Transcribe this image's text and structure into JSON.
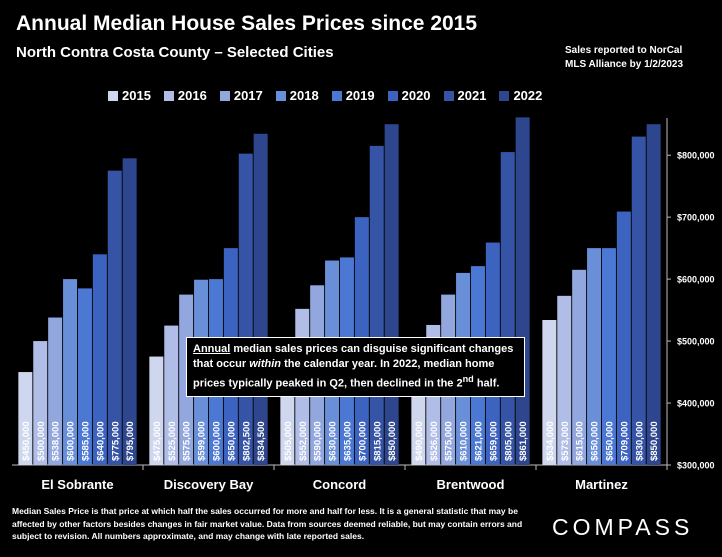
{
  "header": {
    "title": "Annual Median House Sales Prices since 2015",
    "subtitle": "North Contra Costa County – Selected Cities",
    "source_line1": "Sales reported to NorCal",
    "source_line2": "MLS Alliance by 1/2/2023"
  },
  "colors": [
    "#cfd7ee",
    "#b0bde6",
    "#93a7df",
    "#6a8fd9",
    "#4a78d3",
    "#3d63c1",
    "#3654a6",
    "#2e468d"
  ],
  "callout": {
    "word_annual": "Annual",
    "text1": " median sales prices can disguise significant changes that occur ",
    "word_within": "within",
    "text2": " the calendar year. In 2022, median home prices typically peaked in Q2, then declined in the 2",
    "superscript": "nd",
    "text3": " half."
  },
  "footnote": "Median Sales Price is that price at which half the sales occurred for more and half for less. It is a general statistic that may be affected by other factors besides changes in fair market value. Data from sources deemed reliable, but may contain errors and subject to revision.  All numbers approximate, and may change with late reported sales.",
  "logo": "COMPASS",
  "chart_data": {
    "type": "bar",
    "title": "Annual Median House Sales Prices since 2015",
    "categories": [
      "El Sobrante",
      "Discovery Bay",
      "Concord",
      "Brentwood",
      "Martinez"
    ],
    "ylim": [
      300000,
      860000
    ],
    "yticks": [
      300000,
      400000,
      500000,
      600000,
      700000,
      800000
    ],
    "ytick_labels": [
      "$300,000",
      "$400,000",
      "$500,000",
      "$600,000",
      "$700,000",
      "$800,000"
    ],
    "legend_position": "top",
    "series": [
      {
        "name": "2015",
        "values": [
          450000,
          475000,
          505000,
          490000,
          534000
        ],
        "labels": [
          "$450,000",
          "$475,000",
          "$505,000",
          "$490,000",
          "$534,000"
        ]
      },
      {
        "name": "2016",
        "values": [
          500000,
          525000,
          552000,
          526000,
          573000
        ],
        "labels": [
          "$500,000",
          "$525,000",
          "$552,000",
          "$526,000",
          "$573,000"
        ]
      },
      {
        "name": "2017",
        "values": [
          538000,
          575000,
          590000,
          575000,
          615000
        ],
        "labels": [
          "$538,000",
          "$575,000",
          "$590,000",
          "$575,000",
          "$615,000"
        ]
      },
      {
        "name": "2018",
        "values": [
          600000,
          599000,
          630000,
          610000,
          650000
        ],
        "labels": [
          "$600,000",
          "$599,000",
          "$630,000",
          "$610,000",
          "$650,000"
        ]
      },
      {
        "name": "2019",
        "values": [
          585000,
          600000,
          635000,
          621000,
          650000
        ],
        "labels": [
          "$585,000",
          "$600,000",
          "$635,000",
          "$621,000",
          "$650,000"
        ]
      },
      {
        "name": "2020",
        "values": [
          640000,
          650000,
          700000,
          659000,
          709000
        ],
        "labels": [
          "$640,000",
          "$650,000",
          "$700,000",
          "$659,000",
          "$709,000"
        ]
      },
      {
        "name": "2021",
        "values": [
          775000,
          802500,
          815000,
          805000,
          830000
        ],
        "labels": [
          "$775,000",
          "$802,500",
          "$815,000",
          "$805,000",
          "$830,000"
        ]
      },
      {
        "name": "2022",
        "values": [
          795000,
          834500,
          850000,
          861000,
          850000
        ],
        "labels": [
          "$795,000",
          "$834,500",
          "$850,000",
          "$861,000",
          "$850,000"
        ]
      }
    ]
  }
}
